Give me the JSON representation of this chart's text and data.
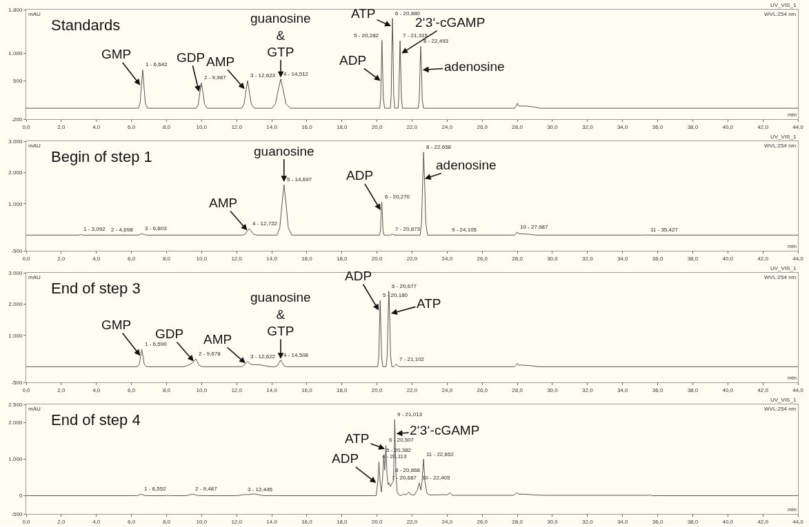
{
  "chart_data": [
    {
      "type": "line",
      "title": "Standards",
      "xlabel": "min",
      "ylabel": "mAU",
      "color": "#555555",
      "x": [
        0,
        6.4,
        6.5,
        6.57,
        6.642,
        6.71,
        6.79,
        6.91,
        9.69,
        9.81,
        9.9,
        9.987,
        10.08,
        10.17,
        10.32,
        12.29,
        12.42,
        12.52,
        12.623,
        12.72,
        12.83,
        13.0,
        14.02,
        14.21,
        14.36,
        14.512,
        14.66,
        14.81,
        15.06,
        20.16,
        20.21,
        20.25,
        20.282,
        20.32,
        20.36,
        20.43,
        20.76,
        20.81,
        20.84,
        20.88,
        20.92,
        20.95,
        21.01,
        21.2,
        21.24,
        21.28,
        21.315,
        21.35,
        21.39,
        21.45,
        22.35,
        22.41,
        22.45,
        22.493,
        22.54,
        22.58,
        22.65,
        27.85,
        27.93,
        28.0,
        28.08,
        28.2,
        28.5,
        29.0,
        29.3,
        44
      ],
      "values": [
        0,
        0,
        100,
        420,
        700,
        420,
        100,
        0,
        0,
        70,
        280,
        465,
        280,
        70,
        0,
        0,
        80,
        300,
        505,
        300,
        80,
        0,
        0,
        80,
        320,
        535,
        320,
        80,
        0,
        0,
        190,
        740,
        1240,
        740,
        190,
        0,
        0,
        250,
        980,
        1640,
        980,
        250,
        0,
        0,
        190,
        740,
        1230,
        740,
        190,
        0,
        0,
        170,
        680,
        1130,
        680,
        170,
        0,
        0,
        40,
        90,
        40,
        40,
        40,
        20,
        0,
        0
      ],
      "xlim": [
        0,
        44
      ],
      "xticks": [
        {
          "value": 0,
          "label": "0,0"
        },
        {
          "value": 2,
          "label": "2,0"
        },
        {
          "value": 4,
          "label": "4,0"
        },
        {
          "value": 6,
          "label": "6,0"
        },
        {
          "value": 8,
          "label": "8,0"
        },
        {
          "value": 10,
          "label": "10,0"
        },
        {
          "value": 12,
          "label": "12,0"
        },
        {
          "value": 14,
          "label": "14,0"
        },
        {
          "value": 16,
          "label": "16,0"
        },
        {
          "value": 18,
          "label": "18,0"
        },
        {
          "value": 20,
          "label": "20,0"
        },
        {
          "value": 22,
          "label": "22,0"
        },
        {
          "value": 24,
          "label": "24,0"
        },
        {
          "value": 26,
          "label": "26,0"
        },
        {
          "value": 28,
          "label": "28,0"
        },
        {
          "value": 30,
          "label": "30,0"
        },
        {
          "value": 32,
          "label": "32,0"
        },
        {
          "value": 34,
          "label": "34,0"
        },
        {
          "value": 36,
          "label": "36,0"
        },
        {
          "value": 38,
          "label": "38,0"
        },
        {
          "value": 40,
          "label": "40,0"
        },
        {
          "value": 42,
          "label": "42,0"
        },
        {
          "value": 44,
          "label": "44,0"
        }
      ],
      "ylim": [
        -200,
        1800
      ],
      "yticks": [
        -200,
        500,
        {
          "value": 1000,
          "label": "1.000"
        },
        {
          "value": 1800,
          "label": "1.800"
        }
      ],
      "annotations": [
        "UV_VIS_1",
        "WVL:254 nm",
        {
          "text": "GMP",
          "x": 6.5,
          "y": 420
        },
        {
          "text": "GDP",
          "x": 9.85,
          "y": 300
        },
        {
          "text": "AMP",
          "x": 12.45,
          "y": 350
        },
        {
          "text": "guanosine\n&\nGTP",
          "x": 14.512,
          "y": 560
        },
        {
          "text": "ADP",
          "x": 20.2,
          "y": 500
        },
        {
          "text": "ATP",
          "x": 20.8,
          "y": 1500
        },
        {
          "text": "2‘3‘-cGAMP",
          "x": 21.4,
          "y": 1000
        },
        {
          "text": "adenosine",
          "x": 22.6,
          "y": 700
        },
        {
          "text": "1 - 6,642",
          "x": 6.642,
          "y": 700
        },
        {
          "text": "2 - 9,987",
          "x": 9.987,
          "y": 465
        },
        {
          "text": "3 - 12,623",
          "x": 12.623,
          "y": 505
        },
        {
          "text": "4 - 14,512",
          "x": 14.512,
          "y": 535
        },
        {
          "text": "5 - 20,282",
          "x": 20.282,
          "y": 1240
        },
        {
          "text": "6 - 20,880",
          "x": 20.88,
          "y": 1640
        },
        {
          "text": "7 - 21,315",
          "x": 21.315,
          "y": 1230
        },
        {
          "text": "8 - 22,493",
          "x": 22.493,
          "y": 1130
        }
      ]
    },
    {
      "type": "line",
      "title": "Begin of step 1",
      "xlabel": "min",
      "ylabel": "mAU",
      "color": "#555555",
      "x": [
        0,
        3.0,
        3.092,
        3.2,
        4.6,
        4.698,
        4.8,
        6.4,
        6.5,
        6.603,
        6.7,
        6.85,
        12.32,
        12.48,
        12.6,
        12.722,
        12.84,
        12.96,
        13.16,
        14.3,
        14.46,
        14.58,
        14.697,
        14.82,
        14.94,
        15.14,
        20.15,
        20.2,
        20.23,
        20.27,
        20.31,
        20.34,
        20.4,
        20.75,
        20.873,
        21.0,
        22.46,
        22.54,
        22.6,
        22.658,
        22.72,
        22.78,
        22.88,
        24.0,
        24.105,
        24.2,
        27.85,
        27.93,
        27.987,
        28.06,
        28.2,
        28.6,
        29.1,
        35.3,
        35.427,
        35.55,
        44
      ],
      "values": [
        0,
        0,
        20,
        0,
        0,
        0,
        0,
        0,
        20,
        50,
        20,
        0,
        0,
        30,
        120,
        200,
        120,
        30,
        0,
        0,
        240,
        970,
        1610,
        970,
        240,
        0,
        0,
        160,
        640,
        1060,
        640,
        160,
        0,
        0,
        30,
        0,
        0,
        400,
        1590,
        2650,
        1590,
        400,
        0,
        0,
        0,
        0,
        0,
        50,
        100,
        50,
        40,
        30,
        0,
        0,
        10,
        0,
        0
      ],
      "xlim": [
        0,
        44
      ],
      "xticks": [
        {
          "value": 0,
          "label": "0,0"
        },
        {
          "value": 2,
          "label": "2,0"
        },
        {
          "value": 4,
          "label": "4,0"
        },
        {
          "value": 6,
          "label": "6,0"
        },
        {
          "value": 8,
          "label": "8,0"
        },
        {
          "value": 10,
          "label": "10,0"
        },
        {
          "value": 12,
          "label": "12,0"
        },
        {
          "value": 14,
          "label": "14,0"
        },
        {
          "value": 16,
          "label": "16,0"
        },
        {
          "value": 18,
          "label": "18,0"
        },
        {
          "value": 20,
          "label": "20,0"
        },
        {
          "value": 22,
          "label": "22,0"
        },
        {
          "value": 24,
          "label": "24,0"
        },
        {
          "value": 26,
          "label": "26,0"
        },
        {
          "value": 28,
          "label": "28,0"
        },
        {
          "value": 30,
          "label": "30,0"
        },
        {
          "value": 32,
          "label": "32,0"
        },
        {
          "value": 34,
          "label": "34,0"
        },
        {
          "value": 36,
          "label": "36,0"
        },
        {
          "value": 38,
          "label": "38,0"
        },
        {
          "value": 40,
          "label": "40,0"
        },
        {
          "value": 42,
          "label": "42,0"
        },
        {
          "value": 44,
          "label": "44,0"
        }
      ],
      "ylim": [
        -500,
        3000
      ],
      "yticks": [
        -500,
        {
          "value": 1000,
          "label": "1.000"
        },
        {
          "value": 2000,
          "label": "2.000"
        },
        {
          "value": 3000,
          "label": "3.000"
        }
      ],
      "annotations": [
        "UV_VIS_1",
        "WVL:254 nm",
        {
          "text": "AMP",
          "x": 12.6,
          "y": 150
        },
        {
          "text": "guanosine",
          "x": 14.697,
          "y": 1700
        },
        {
          "text": "ADP",
          "x": 20.2,
          "y": 800
        },
        {
          "text": "adenosine",
          "x": 22.72,
          "y": 1800
        },
        {
          "text": "1 - 3,092",
          "x": 3.092,
          "y": 20
        },
        {
          "text": "2 - 4,698",
          "x": 4.698,
          "y": 0
        },
        {
          "text": "3 - 6,603",
          "x": 6.603,
          "y": 50
        },
        {
          "text": "4 - 12,722",
          "x": 12.722,
          "y": 200
        },
        {
          "text": "5 - 14,697",
          "x": 14.697,
          "y": 1610
        },
        {
          "text": "6 - 20,270",
          "x": 20.27,
          "y": 1060
        },
        {
          "text": "7 - 20,873",
          "x": 20.873,
          "y": 30
        },
        {
          "text": "8 - 22,658",
          "x": 22.658,
          "y": 2650
        },
        {
          "text": "9 - 24,105",
          "x": 24.105,
          "y": 0
        },
        {
          "text": "10 - 27,987",
          "x": 27.987,
          "y": 100
        },
        {
          "text": "11 - 35,427",
          "x": 35.427,
          "y": 10
        }
      ]
    },
    {
      "type": "line",
      "title": "End of step 3",
      "xlabel": "min",
      "ylabel": "mAU",
      "color": "#555555",
      "x": [
        0,
        6.35,
        6.45,
        6.52,
        6.59,
        6.66,
        6.73,
        6.85,
        9.0,
        9.3,
        9.5,
        9.59,
        9.678,
        9.77,
        9.86,
        10.05,
        12.3,
        12.45,
        12.55,
        12.622,
        12.72,
        12.85,
        13.3,
        13.6,
        13.9,
        14.2,
        14.33,
        14.42,
        14.508,
        14.6,
        14.69,
        14.85,
        20.04,
        20.1,
        20.14,
        20.18,
        20.22,
        20.26,
        20.33,
        20.52,
        20.58,
        20.63,
        20.677,
        20.73,
        20.77,
        20.85,
        20.95,
        21.02,
        21.102,
        21.18,
        21.3,
        27.85,
        27.93,
        28.0,
        28.08,
        28.3,
        28.8,
        29.2,
        44
      ],
      "values": [
        0,
        0,
        80,
        330,
        550,
        330,
        80,
        0,
        0,
        60,
        130,
        190,
        250,
        150,
        40,
        0,
        0,
        60,
        130,
        170,
        110,
        70,
        60,
        30,
        0,
        0,
        30,
        130,
        210,
        130,
        30,
        0,
        0,
        320,
        1270,
        2115,
        1270,
        320,
        0,
        0,
        360,
        1450,
        2415,
        1450,
        360,
        0,
        0,
        30,
        80,
        30,
        0,
        0,
        50,
        110,
        50,
        50,
        30,
        0,
        0
      ],
      "xlim": [
        0,
        44
      ],
      "xticks": [
        {
          "value": 0,
          "label": "0,0"
        },
        {
          "value": 2,
          "label": "2,0"
        },
        {
          "value": 4,
          "label": "4,0"
        },
        {
          "value": 6,
          "label": "6,0"
        },
        {
          "value": 8,
          "label": "8,0"
        },
        {
          "value": 10,
          "label": "10,0"
        },
        {
          "value": 12,
          "label": "12,0"
        },
        {
          "value": 14,
          "label": "14,0"
        },
        {
          "value": 16,
          "label": "16,0"
        },
        {
          "value": 18,
          "label": "18,0"
        },
        {
          "value": 20,
          "label": "20,0"
        },
        {
          "value": 22,
          "label": "22,0"
        },
        {
          "value": 24,
          "label": "24,0"
        },
        {
          "value": 26,
          "label": "26,0"
        },
        {
          "value": 28,
          "label": "28,0"
        },
        {
          "value": 30,
          "label": "30,0"
        },
        {
          "value": 32,
          "label": "32,0"
        },
        {
          "value": 34,
          "label": "34,0"
        },
        {
          "value": 36,
          "label": "36,0"
        },
        {
          "value": 38,
          "label": "38,0"
        },
        {
          "value": 40,
          "label": "40,0"
        },
        {
          "value": 42,
          "label": "42,0"
        },
        {
          "value": 44,
          "label": "44,0"
        }
      ],
      "ylim": [
        -500,
        3000
      ],
      "yticks": [
        -500,
        {
          "value": 1000,
          "label": "1.000"
        },
        {
          "value": 2000,
          "label": "2.000"
        },
        {
          "value": 3000,
          "label": "3.000"
        }
      ],
      "annotations": [
        "UV_VIS_1",
        "WVL:254 nm",
        {
          "text": "GMP",
          "x": 6.5,
          "y": 350
        },
        {
          "text": "GDP",
          "x": 9.55,
          "y": 170
        },
        {
          "text": "AMP",
          "x": 12.5,
          "y": 110
        },
        {
          "text": "guanosine\n&\nGTP",
          "x": 14.508,
          "y": 250
        },
        {
          "text": "ADP",
          "x": 20.1,
          "y": 1800
        },
        {
          "text": "ATP",
          "x": 20.8,
          "y": 1700
        },
        {
          "text": "1 - 6,590",
          "x": 6.59,
          "y": 550
        },
        {
          "text": "2 - 9,678",
          "x": 9.678,
          "y": 250
        },
        {
          "text": "3 - 12,622",
          "x": 12.622,
          "y": 170
        },
        {
          "text": "4 - 14,508",
          "x": 14.508,
          "y": 210
        },
        {
          "text": "5 - 20,180",
          "x": 20.18,
          "y": 2115
        },
        {
          "text": "6 - 20,677",
          "x": 20.677,
          "y": 2415
        },
        {
          "text": "7 - 21,102",
          "x": 21.102,
          "y": 80
        }
      ]
    },
    {
      "type": "line",
      "title": "End of step 4",
      "xlabel": "min",
      "ylabel": "mAU",
      "color": "#555555",
      "x": [
        0,
        6.3,
        6.45,
        6.552,
        6.65,
        6.8,
        7.9,
        8.0,
        8.2,
        9.1,
        9.3,
        9.487,
        9.65,
        9.9,
        12.0,
        12.3,
        12.445,
        12.7,
        13.0,
        13.3,
        13.6,
        19.95,
        20.05,
        20.113,
        20.18,
        20.25,
        20.32,
        20.382,
        20.44,
        20.507,
        20.57,
        20.63,
        20.687,
        20.76,
        20.868,
        20.94,
        21.013,
        21.08,
        21.15,
        21.3,
        21.45,
        21.52,
        21.6,
        21.75,
        21.82,
        21.9,
        22.1,
        22.3,
        22.405,
        22.5,
        22.57,
        22.652,
        22.73,
        22.85,
        23.0,
        23.5,
        23.75,
        24.0,
        24.15,
        24.3,
        27.8,
        27.95,
        28.1,
        28.4,
        29.0,
        29.5,
        35.5,
        35.6,
        35.7,
        44
      ],
      "values": [
        0,
        0,
        20,
        40,
        20,
        0,
        0,
        10,
        0,
        0,
        20,
        40,
        20,
        0,
        0,
        20,
        30,
        30,
        50,
        20,
        0,
        0,
        400,
        925,
        350,
        100,
        500,
        1100,
        700,
        1380,
        600,
        300,
        350,
        250,
        350,
        400,
        2085,
        600,
        100,
        0,
        20,
        50,
        20,
        60,
        100,
        40,
        10,
        150,
        350,
        150,
        400,
        1000,
        400,
        60,
        20,
        20,
        30,
        20,
        80,
        10,
        10,
        80,
        40,
        40,
        20,
        10,
        10,
        20,
        0,
        0
      ],
      "xlim": [
        0,
        44
      ],
      "xticks": [
        {
          "value": 0,
          "label": "0,0"
        },
        {
          "value": 2,
          "label": "2,0"
        },
        {
          "value": 4,
          "label": "4,0"
        },
        {
          "value": 6,
          "label": "6,0"
        },
        {
          "value": 8,
          "label": "8,0"
        },
        {
          "value": 10,
          "label": "10,0"
        },
        {
          "value": 12,
          "label": "12,0"
        },
        {
          "value": 14,
          "label": "14,0"
        },
        {
          "value": 16,
          "label": "16,0"
        },
        {
          "value": 18,
          "label": "18,0"
        },
        {
          "value": 20,
          "label": "20,0"
        },
        {
          "value": 22,
          "label": "22,0"
        },
        {
          "value": 24,
          "label": "24,0"
        },
        {
          "value": 26,
          "label": "26,0"
        },
        {
          "value": 28,
          "label": "28,0"
        },
        {
          "value": 30,
          "label": "30,0"
        },
        {
          "value": 32,
          "label": "32,0"
        },
        {
          "value": 34,
          "label": "34,0"
        },
        {
          "value": 36,
          "label": "36,0"
        },
        {
          "value": 38,
          "label": "38,0"
        },
        {
          "value": 40,
          "label": "40,0"
        },
        {
          "value": 42,
          "label": "42,0"
        },
        {
          "value": 44,
          "label": "44,0"
        }
      ],
      "ylim": [
        -500,
        2500
      ],
      "yticks": [
        -500,
        0,
        {
          "value": 1000,
          "label": "1.000"
        },
        {
          "value": 2000,
          "label": "2.000"
        },
        {
          "value": 2500,
          "label": "2.500"
        }
      ],
      "annotations": [
        "UV_VIS_1",
        "WVL:254 nm",
        {
          "text": "ADP",
          "x": 19.95,
          "y": 350
        },
        {
          "text": "ATP",
          "x": 20.45,
          "y": 1280
        },
        {
          "text": "2‘3‘-cGAMP",
          "x": 21.1,
          "y": 1700
        },
        {
          "text": "1 - 6,552",
          "x": 6.552,
          "y": 40
        },
        {
          "text": "2 - 9,487",
          "x": 9.487,
          "y": 40
        },
        {
          "text": "3 - 12,445",
          "x": 12.445,
          "y": 30
        },
        {
          "text": "4 - 20,113",
          "x": 20.113,
          "y": 925
        },
        {
          "text": "5 - 20,382",
          "x": 20.382,
          "y": 1100
        },
        {
          "text": "6 - 20,507",
          "x": 20.507,
          "y": 1380
        },
        {
          "text": "7 - 20,687",
          "x": 20.687,
          "y": 350
        },
        {
          "text": "8 - 20,868",
          "x": 20.868,
          "y": 350
        },
        {
          "text": "9 - 21,013",
          "x": 21.013,
          "y": 2085
        },
        {
          "text": "10 - 22,405",
          "x": 22.405,
          "y": 350
        },
        {
          "text": "11 - 22,652",
          "x": 22.652,
          "y": 1000
        }
      ]
    }
  ]
}
